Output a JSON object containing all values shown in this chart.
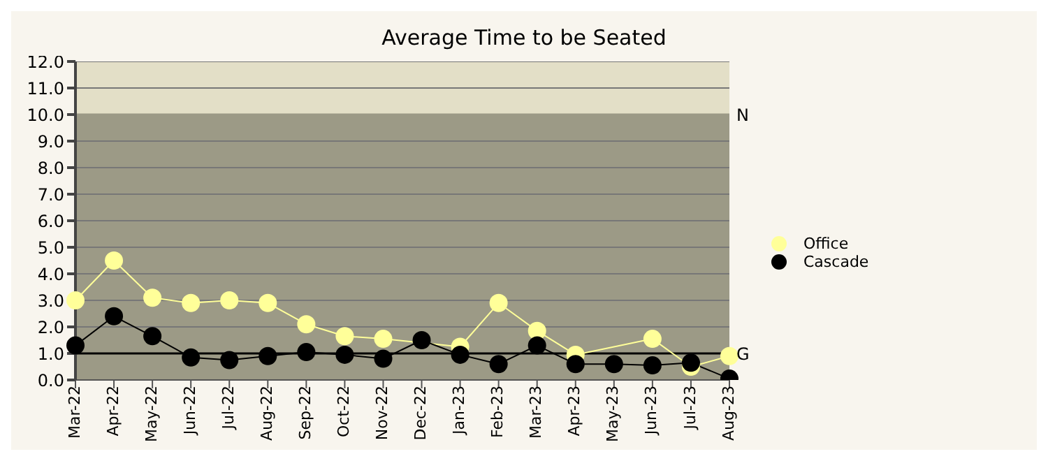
{
  "chart_data": {
    "type": "line",
    "title": "Average Time to be Seated",
    "categories": [
      "Mar-22",
      "Apr-22",
      "May-22",
      "Jun-22",
      "Jul-22",
      "Aug-22",
      "Sep-22",
      "Oct-22",
      "Nov-22",
      "Dec-22",
      "Jan-23",
      "Feb-23",
      "Mar-23",
      "Apr-23",
      "May-23",
      "Jun-23",
      "Jul-23",
      "Aug-23"
    ],
    "series": [
      {
        "name": "Office",
        "color": "#ffff99",
        "values": [
          3.0,
          4.5,
          3.1,
          2.9,
          3.0,
          2.9,
          2.1,
          1.65,
          1.55,
          null,
          1.25,
          2.9,
          1.85,
          0.95,
          null,
          1.55,
          0.5,
          0.9
        ]
      },
      {
        "name": "Cascade",
        "color": "#000000",
        "values": [
          1.3,
          2.4,
          1.65,
          0.85,
          0.75,
          0.9,
          1.05,
          0.95,
          0.8,
          1.5,
          0.95,
          0.6,
          1.3,
          0.6,
          0.6,
          0.55,
          0.65,
          0.05
        ]
      }
    ],
    "ylim": [
      0,
      12
    ],
    "yticks": [
      {
        "value": 0,
        "label": "0.0"
      },
      {
        "value": 1,
        "label": "1.0"
      },
      {
        "value": 2,
        "label": "2.0"
      },
      {
        "value": 3,
        "label": "3.0"
      },
      {
        "value": 4,
        "label": "4.0"
      },
      {
        "value": 5,
        "label": "5.0"
      },
      {
        "value": 6,
        "label": "6.0"
      },
      {
        "value": 7,
        "label": "7.0"
      },
      {
        "value": 8,
        "label": "8.0"
      },
      {
        "value": 9,
        "label": "9.0"
      },
      {
        "value": 10,
        "label": "10.0"
      },
      {
        "value": 11,
        "label": "11.0"
      },
      {
        "value": 12,
        "label": "12.0"
      }
    ],
    "bands": [
      {
        "axis": "y",
        "from": 0,
        "to": 10,
        "color": "#9c9a86"
      },
      {
        "axis": "y",
        "from": 10,
        "to": 12,
        "color": "#e3dfc7"
      }
    ],
    "ref_lines": [
      {
        "axis": "y",
        "value": 10,
        "label": "N",
        "color": "#9c9a86"
      },
      {
        "axis": "y",
        "value": 1,
        "label": "G",
        "color": "#000000"
      }
    ],
    "grid": "y",
    "legend": "right",
    "marker": "circle",
    "line_style": "solid"
  }
}
